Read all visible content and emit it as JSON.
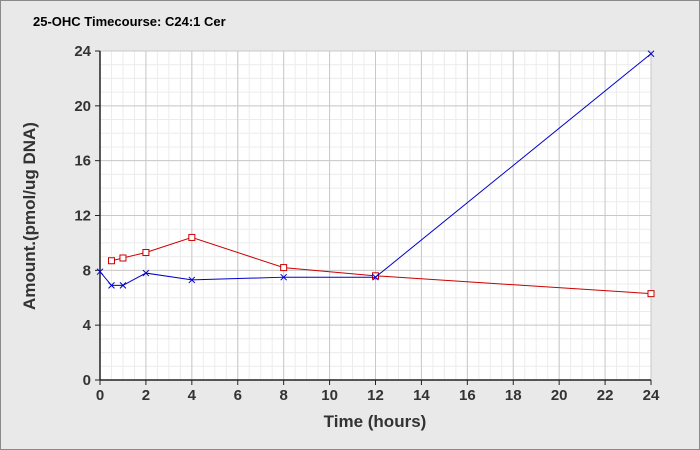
{
  "chart_data": {
    "type": "line",
    "title": "25-OHC Timecourse: C24:1 Cer",
    "xlabel": "Time (hours)",
    "ylabel": "Amount.(pmol/ug DNA)",
    "xlim": [
      0,
      24
    ],
    "ylim": [
      0,
      24
    ],
    "xticks": [
      0,
      2,
      4,
      6,
      8,
      10,
      12,
      14,
      16,
      18,
      20,
      22,
      24
    ],
    "yticks": [
      0,
      4,
      8,
      12,
      16,
      20,
      24
    ],
    "x_minor_step": 0.5,
    "y_minor_step": 1,
    "grid": true,
    "legend": "none",
    "series": [
      {
        "color": "#cc0000",
        "marker": "square",
        "x": [
          0.5,
          1,
          2,
          4,
          8,
          12,
          24
        ],
        "values": [
          8.7,
          8.9,
          9.3,
          10.4,
          8.2,
          7.6,
          6.3
        ]
      },
      {
        "color": "#0000cc",
        "marker": "cross",
        "x": [
          0,
          0.5,
          1,
          2,
          4,
          8,
          12,
          24
        ],
        "values": [
          7.9,
          6.9,
          6.9,
          7.8,
          7.3,
          7.5,
          7.5,
          23.8
        ]
      }
    ]
  }
}
